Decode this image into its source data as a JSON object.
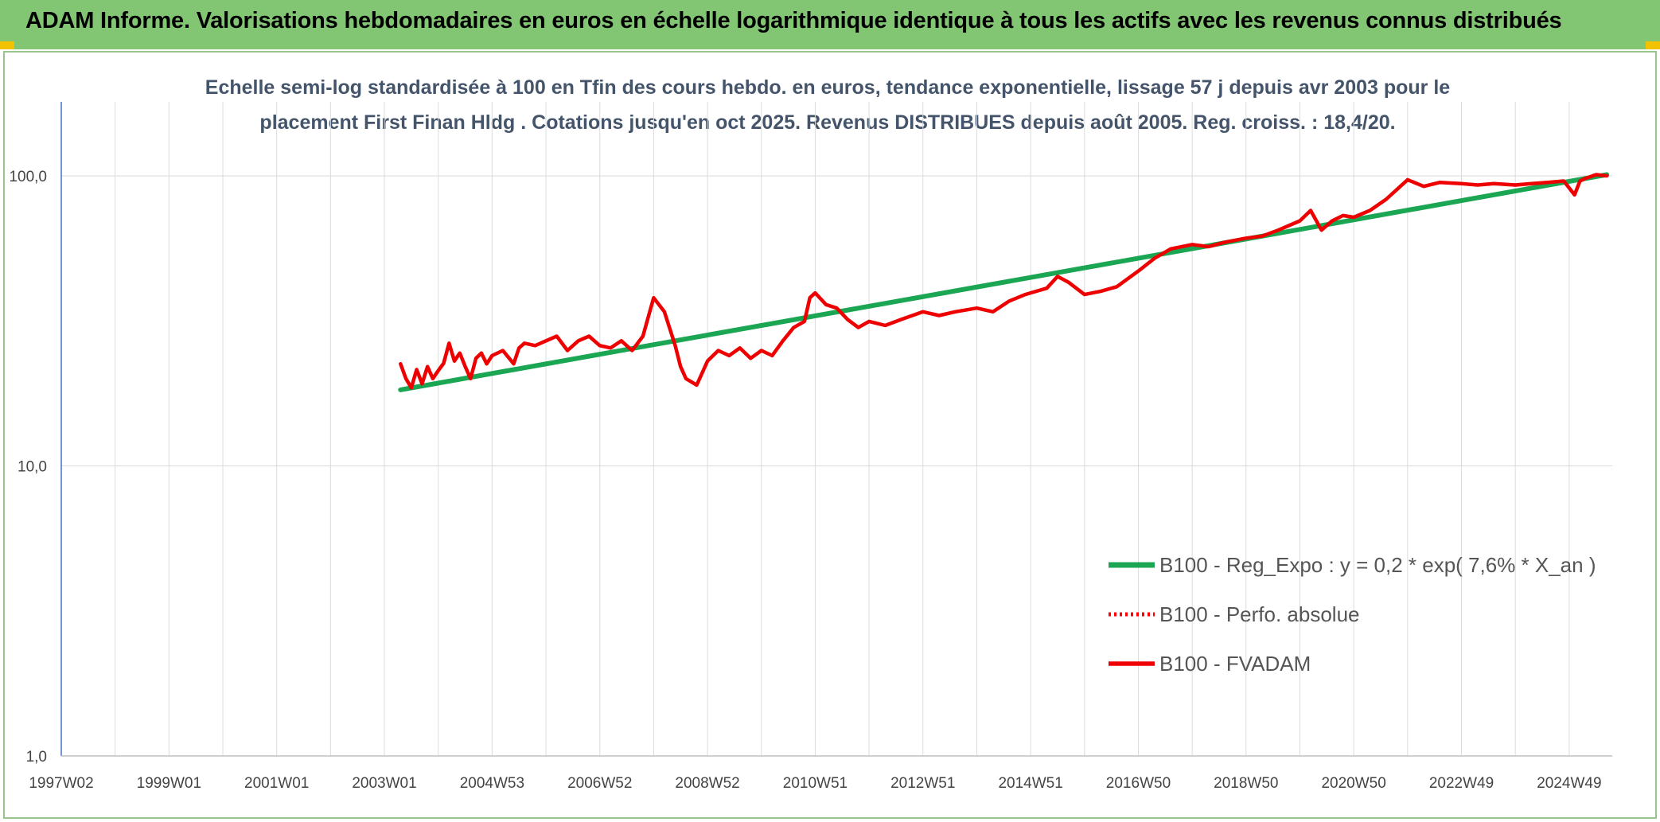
{
  "header": {
    "title": "ADAM Informe. Valorisations hebdomadaires en euros en échelle logarithmique identique à tous les actifs avec les revenus connus distribués"
  },
  "colors": {
    "banner": "#82c674",
    "regression": "#1aa652",
    "perf": "#ff0000",
    "fvadam": "#ee0000",
    "title_text": "#44546a"
  },
  "chart_data": {
    "type": "line",
    "title_line1": "Echelle semi-log standardisée à 100 en Tfin des cours hebdo. en euros, tendance exponentielle, lissage 57 j depuis avr 2003 pour le",
    "title_line2": "placement First Finan Hldg . Cotations jusqu'en oct 2025. Revenus DISTRIBUES depuis août 2005. Reg. croiss. : 18,4/20.",
    "y_scale": "log",
    "ylim": [
      1,
      180
    ],
    "xlim": [
      1997.0,
      2025.8
    ],
    "y_ticks": [
      {
        "value": 100,
        "label": "100,0"
      },
      {
        "value": 10,
        "label": "10,0"
      },
      {
        "value": 1,
        "label": "1,0"
      }
    ],
    "x_ticks": [
      {
        "value": 1997.0,
        "label": "1997W02"
      },
      {
        "value": 1999.0,
        "label": "1999W01"
      },
      {
        "value": 2001.0,
        "label": "2001W01"
      },
      {
        "value": 2003.0,
        "label": "2003W01"
      },
      {
        "value": 2005.0,
        "label": "2004W53"
      },
      {
        "value": 2007.0,
        "label": "2006W52"
      },
      {
        "value": 2009.0,
        "label": "2008W52"
      },
      {
        "value": 2011.0,
        "label": "2010W51"
      },
      {
        "value": 2013.0,
        "label": "2012W51"
      },
      {
        "value": 2015.0,
        "label": "2014W51"
      },
      {
        "value": 2017.0,
        "label": "2016W50"
      },
      {
        "value": 2019.0,
        "label": "2018W50"
      },
      {
        "value": 2021.0,
        "label": "2020W50"
      },
      {
        "value": 2023.0,
        "label": "2022W49"
      },
      {
        "value": 2025.0,
        "label": "2024W49"
      }
    ],
    "minor_gridlines_every_year": true,
    "legend_position": "right-middle",
    "series": [
      {
        "name": "B100 - Reg_Expo : y = 0,2 * exp( 7,6% *  X_an )",
        "style": "solid-green",
        "x": [
          2003.3,
          2025.7
        ],
        "y": [
          18.3,
          101
        ]
      },
      {
        "name": "B100 - Perfo. absolue",
        "style": "dotted-red",
        "x": [],
        "y": []
      },
      {
        "name": "B100 - FVADAM",
        "style": "solid-red",
        "x": [
          2003.3,
          2003.4,
          2003.5,
          2003.6,
          2003.7,
          2003.8,
          2003.9,
          2004.0,
          2004.1,
          2004.2,
          2004.3,
          2004.4,
          2004.5,
          2004.6,
          2004.7,
          2004.8,
          2004.9,
          2005.0,
          2005.2,
          2005.4,
          2005.5,
          2005.6,
          2005.8,
          2006.0,
          2006.2,
          2006.4,
          2006.6,
          2006.8,
          2007.0,
          2007.2,
          2007.4,
          2007.6,
          2007.8,
          2008.0,
          2008.2,
          2008.4,
          2008.5,
          2008.6,
          2008.8,
          2009.0,
          2009.2,
          2009.4,
          2009.6,
          2009.8,
          2010.0,
          2010.2,
          2010.4,
          2010.6,
          2010.8,
          2010.9,
          2011.0,
          2011.2,
          2011.4,
          2011.6,
          2011.8,
          2012.0,
          2012.3,
          2012.6,
          2013.0,
          2013.3,
          2013.6,
          2014.0,
          2014.3,
          2014.6,
          2014.9,
          2015.1,
          2015.3,
          2015.5,
          2015.7,
          2016.0,
          2016.3,
          2016.6,
          2017.0,
          2017.3,
          2017.6,
          2018.0,
          2018.3,
          2018.6,
          2019.0,
          2019.3,
          2019.6,
          2020.0,
          2020.2,
          2020.4,
          2020.6,
          2020.8,
          2021.0,
          2021.3,
          2021.6,
          2022.0,
          2022.3,
          2022.6,
          2023.0,
          2023.3,
          2023.6,
          2024.0,
          2024.3,
          2024.6,
          2024.9,
          2025.1,
          2025.2,
          2025.3,
          2025.5,
          2025.7
        ],
        "y": [
          22.5,
          20.0,
          18.6,
          21.5,
          19.2,
          22.0,
          20.0,
          21.3,
          22.6,
          26.5,
          23.0,
          24.5,
          22.0,
          20.0,
          23.5,
          24.5,
          22.5,
          24.0,
          25.0,
          22.5,
          25.5,
          26.5,
          26.0,
          27.0,
          28.0,
          25.0,
          27.0,
          28.0,
          26.0,
          25.5,
          27.0,
          25.0,
          28.0,
          38.0,
          34.0,
          26.0,
          22.0,
          20.0,
          19.0,
          23.0,
          25.0,
          24.0,
          25.5,
          23.5,
          25.0,
          24.0,
          27.0,
          30.0,
          31.5,
          38.0,
          39.5,
          36.0,
          35.0,
          32.0,
          30.0,
          31.5,
          30.5,
          32.0,
          34.0,
          33.0,
          34.0,
          35.0,
          34.0,
          37.0,
          39.0,
          40.0,
          41.0,
          45.0,
          43.0,
          39.0,
          40.0,
          41.5,
          47.0,
          52.0,
          56.0,
          58.0,
          57.0,
          59.0,
          61.0,
          62.0,
          65.0,
          70.0,
          76.0,
          65.0,
          70.0,
          73.0,
          72.0,
          76.0,
          83.0,
          97.0,
          92.0,
          95.0,
          94.0,
          93.0,
          94.0,
          93.0,
          94.0,
          95.0,
          96.0,
          86.0,
          96.0,
          98.0,
          101.0,
          100.0
        ]
      }
    ]
  }
}
